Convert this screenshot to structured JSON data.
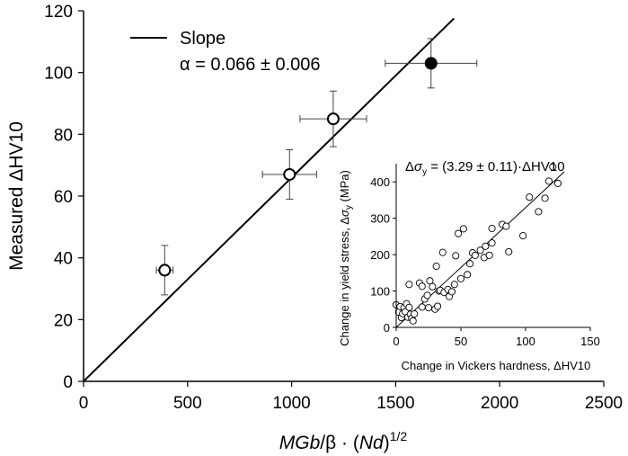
{
  "chart_data": [
    {
      "type": "scatter",
      "xlabel_parts": [
        "MGb",
        "/β · (",
        "Nd",
        ")",
        "1/2"
      ],
      "ylabel": "Measured ΔHV10",
      "xlim": [
        0,
        2500
      ],
      "ylim": [
        0,
        120
      ],
      "x_ticks": [
        0,
        500,
        1000,
        1500,
        2000,
        2500
      ],
      "y_ticks": [
        0,
        20,
        40,
        60,
        80,
        100,
        120
      ],
      "grid": false,
      "legend": {
        "position": "top-left",
        "line_label": "Slope",
        "value_label": "α = 0.066 ± 0.006"
      },
      "fit_line": {
        "x": [
          0,
          1780
        ],
        "y": [
          0,
          117.5
        ]
      },
      "points": [
        {
          "x": 390,
          "y": 36,
          "xerr": 40,
          "yerr": 8,
          "filled": false
        },
        {
          "x": 990,
          "y": 67,
          "xerr": 130,
          "yerr": 8,
          "filled": false
        },
        {
          "x": 1200,
          "y": 85,
          "xerr": 160,
          "yerr": 9,
          "filled": false
        },
        {
          "x": 1670,
          "y": 103,
          "xerr": 220,
          "yerr": 8,
          "filled": true
        }
      ]
    },
    {
      "type": "scatter",
      "title_parts": [
        "Δ",
        "σ",
        "y",
        " = (3.29 ± 0.11)·ΔHV10"
      ],
      "xlabel": "Change in Vickers hardness, ΔHV10",
      "ylabel_parts": [
        "Change in yield stress, Δ",
        "σ",
        "y",
        " (MPa)"
      ],
      "xlim": [
        0,
        150
      ],
      "ylim": [
        0,
        450
      ],
      "x_ticks": [
        0,
        50,
        100,
        150
      ],
      "y_ticks": [
        0,
        100,
        200,
        300,
        400
      ],
      "fit_line": {
        "x": [
          0,
          130
        ],
        "y": [
          0,
          428
        ]
      },
      "points": [
        [
          0,
          62
        ],
        [
          2,
          42
        ],
        [
          3,
          57
        ],
        [
          4,
          27
        ],
        [
          5,
          38
        ],
        [
          6,
          54
        ],
        [
          7,
          43
        ],
        [
          8,
          65
        ],
        [
          9,
          28
        ],
        [
          10,
          118
        ],
        [
          10,
          55
        ],
        [
          11,
          36
        ],
        [
          12,
          25
        ],
        [
          13,
          18
        ],
        [
          14,
          37
        ],
        [
          18,
          122
        ],
        [
          20,
          113
        ],
        [
          20,
          56
        ],
        [
          22,
          78
        ],
        [
          24,
          88
        ],
        [
          25,
          54
        ],
        [
          26,
          128
        ],
        [
          28,
          112
        ],
        [
          30,
          50
        ],
        [
          31,
          168
        ],
        [
          32,
          58
        ],
        [
          33,
          100
        ],
        [
          34,
          102
        ],
        [
          36,
          206
        ],
        [
          37,
          96
        ],
        [
          40,
          104
        ],
        [
          41,
          85
        ],
        [
          43,
          98
        ],
        [
          45,
          118
        ],
        [
          46,
          197
        ],
        [
          48,
          258
        ],
        [
          50,
          134
        ],
        [
          52,
          271
        ],
        [
          55,
          145
        ],
        [
          57,
          175
        ],
        [
          59,
          205
        ],
        [
          61,
          198
        ],
        [
          65,
          212
        ],
        [
          68,
          192
        ],
        [
          69,
          223
        ],
        [
          72,
          198
        ],
        [
          74,
          232
        ],
        [
          74,
          272
        ],
        [
          82,
          283
        ],
        [
          85,
          278
        ],
        [
          87,
          208
        ],
        [
          98,
          252
        ],
        [
          103,
          358
        ],
        [
          110,
          318
        ],
        [
          115,
          355
        ],
        [
          118,
          402
        ],
        [
          121,
          441
        ],
        [
          125,
          396
        ]
      ]
    }
  ]
}
